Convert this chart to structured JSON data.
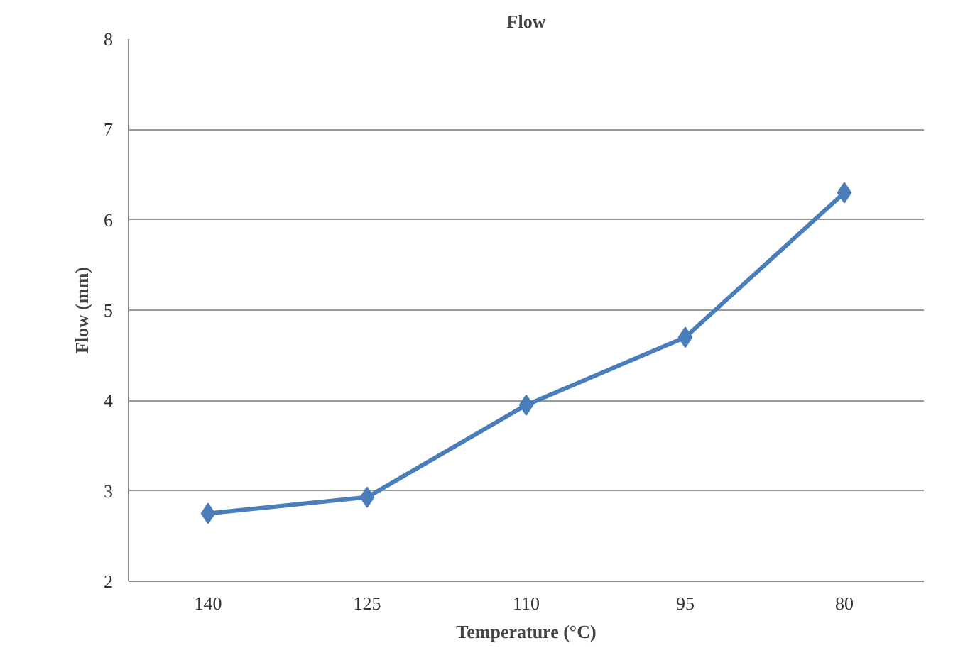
{
  "chart_data": {
    "type": "line",
    "title": "Flow",
    "xlabel": "Temperature (°C)",
    "ylabel": "Flow (mm)",
    "categories": [
      "140",
      "125",
      "110",
      "95",
      "80"
    ],
    "series": [
      {
        "color": "#4a7ebb",
        "values": [
          2.75,
          2.93,
          3.95,
          4.7,
          6.3
        ]
      }
    ],
    "ylim": [
      2,
      8
    ],
    "yticks": [
      2,
      3,
      4,
      5,
      6,
      7,
      8
    ],
    "grid": "y",
    "marker": "diamond",
    "line_style": "solid"
  }
}
